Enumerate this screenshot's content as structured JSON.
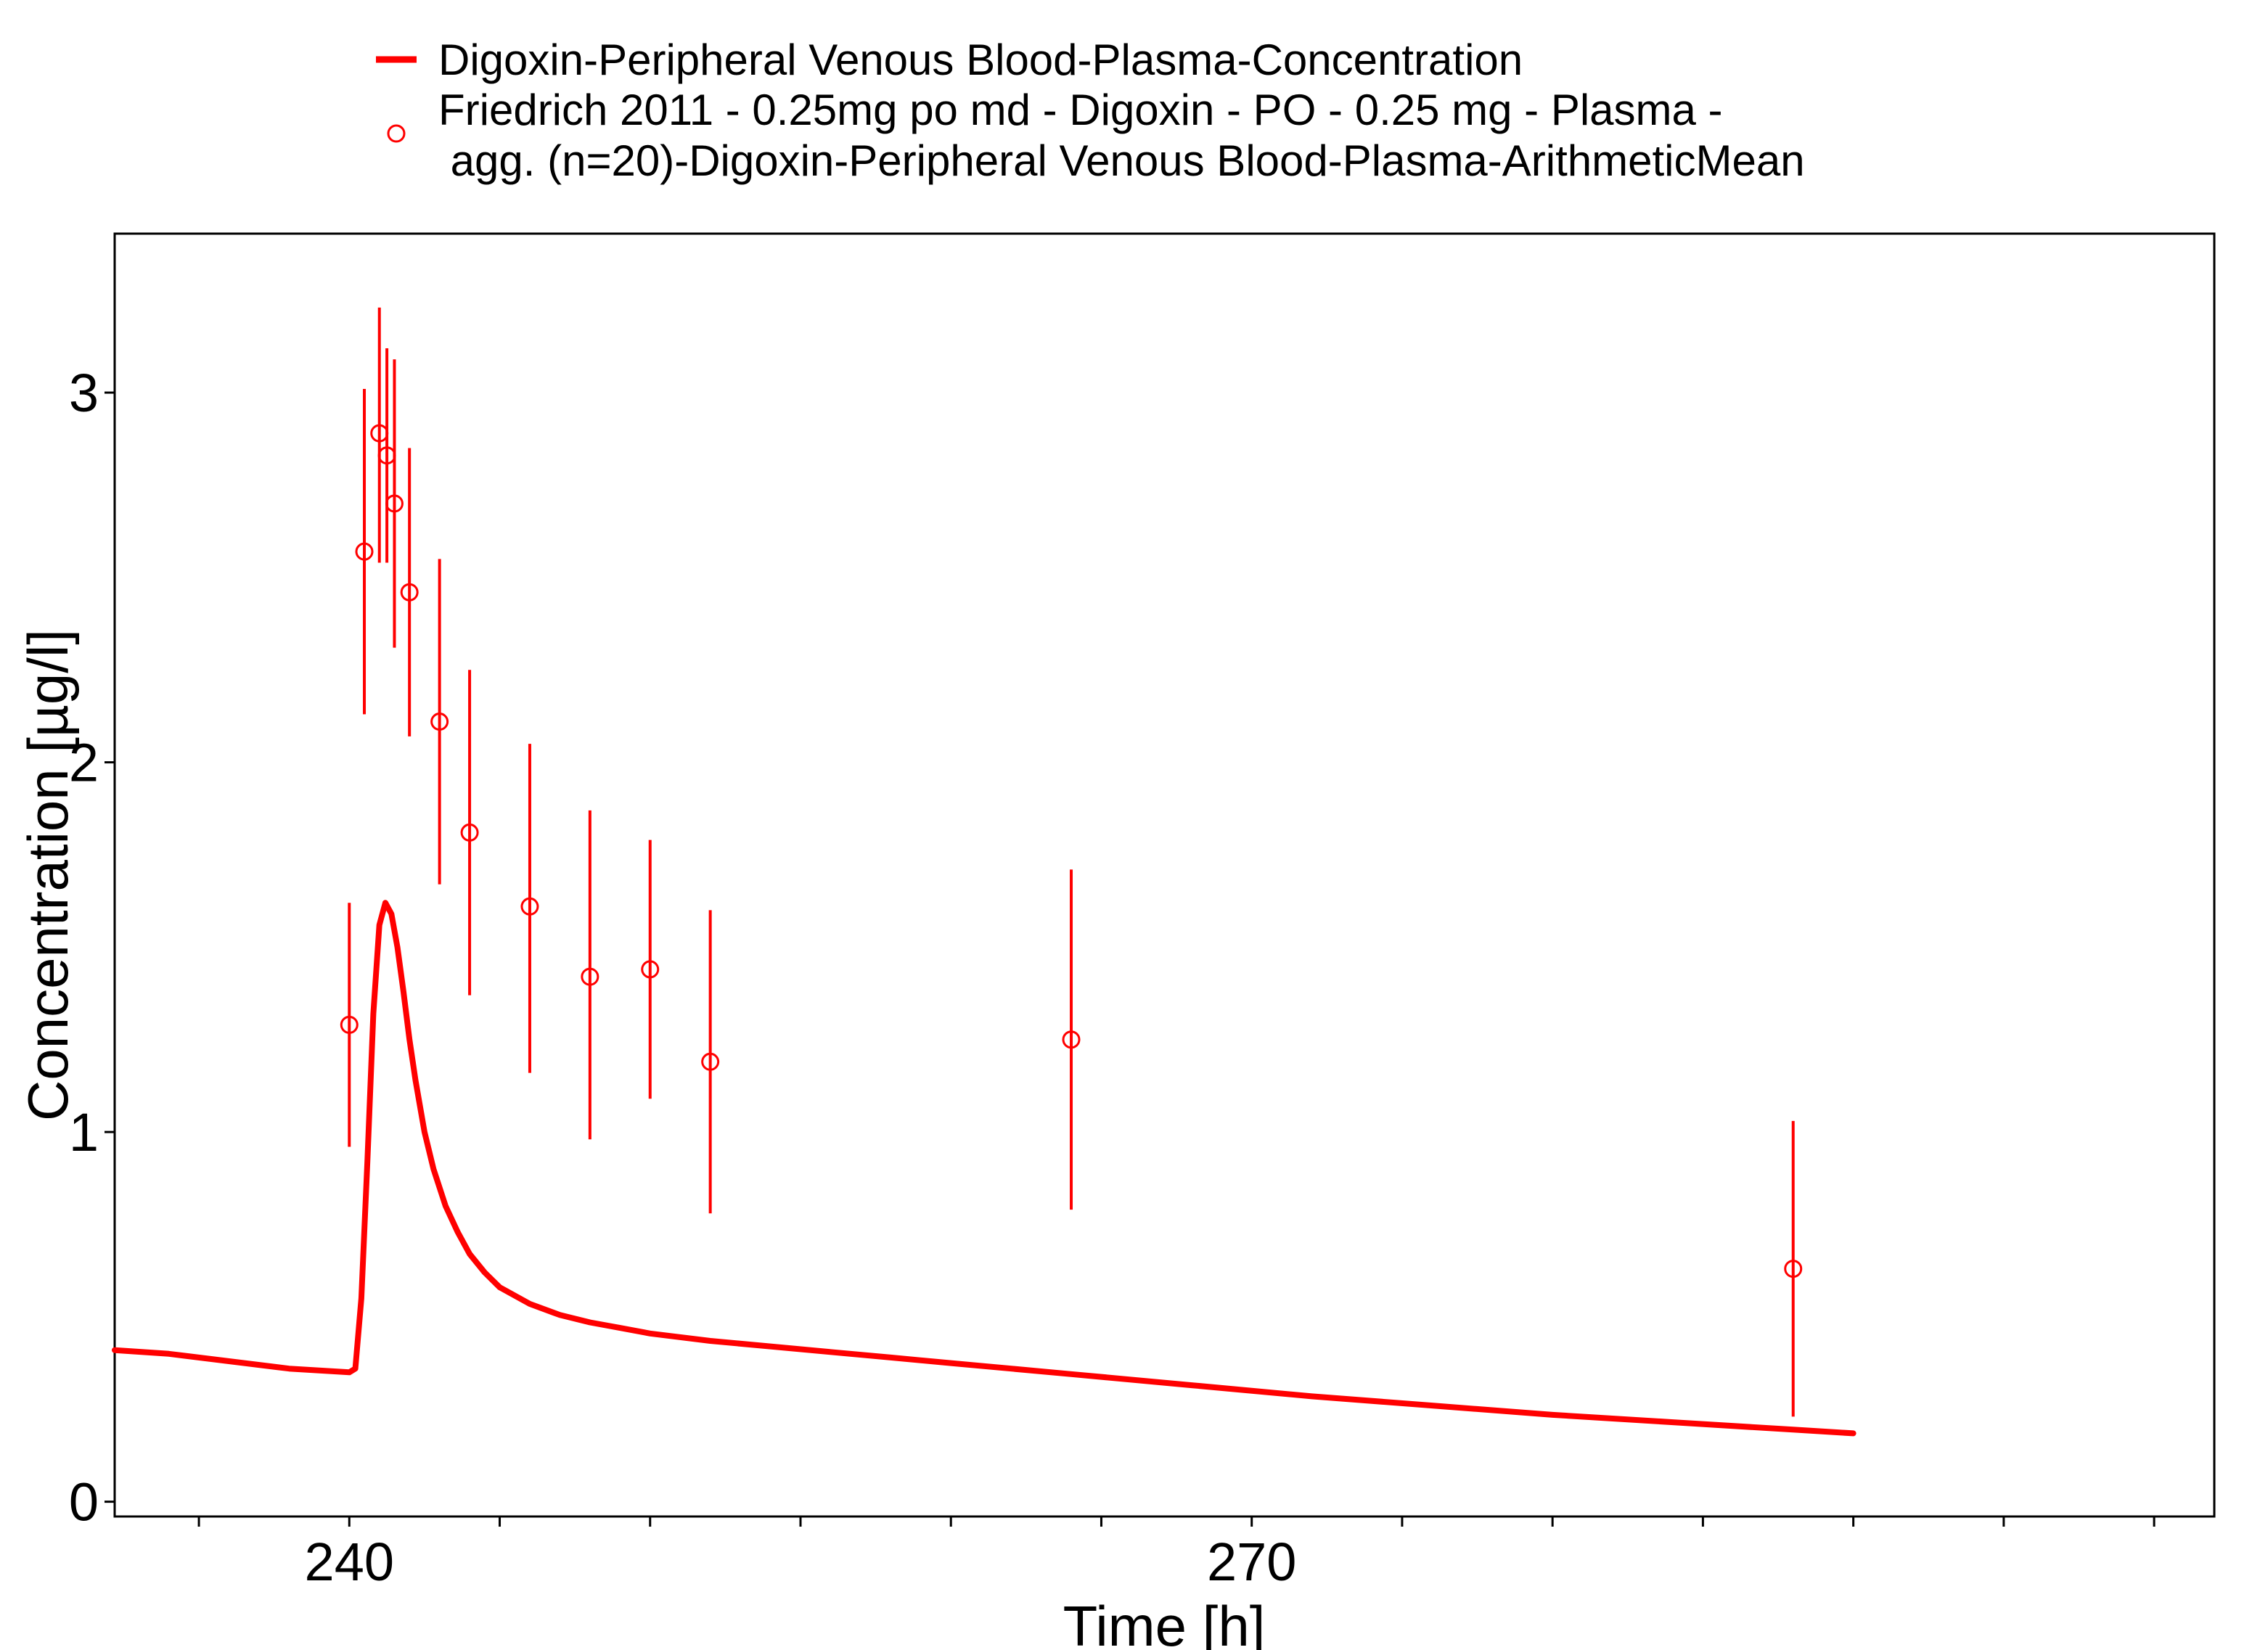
{
  "colors": {
    "series": "#ff0000",
    "axis": "#000000",
    "background": "#ffffff"
  },
  "legend": {
    "position": "top",
    "entries": [
      {
        "marker": "line",
        "lines": [
          "Digoxin-Peripheral Venous Blood-Plasma-Concentration"
        ]
      },
      {
        "marker": "open-circle",
        "lines": [
          "Friedrich 2011 - 0.25mg po md - Digoxin - PO - 0.25 mg - Plasma -",
          " agg. (n=20)-Digoxin-Peripheral Venous Blood-Plasma-ArithmeticMean"
        ]
      }
    ]
  },
  "chart_data": {
    "type": "scatter",
    "xlabel": "Time [h]",
    "ylabel": "Concentration [µg/l]",
    "xlim": [
      232.2,
      302.0
    ],
    "ylim": [
      -0.04,
      3.43
    ],
    "xticks": [
      240,
      270
    ],
    "xminor_step": 5,
    "yticks": [
      0,
      1,
      2,
      3
    ],
    "grid": false,
    "series": [
      {
        "name": "Digoxin-Peripheral Venous Blood-Plasma-Concentration",
        "kind": "line",
        "x": [
          232.2,
          234,
          236,
          238,
          240,
          240.2,
          240.4,
          240.6,
          240.8,
          241.0,
          241.2,
          241.4,
          241.6,
          241.8,
          242.0,
          242.2,
          242.5,
          242.8,
          243.2,
          243.6,
          244.0,
          244.5,
          245,
          246,
          247,
          248,
          249,
          250,
          252,
          254,
          256,
          258,
          260,
          264,
          268,
          272,
          276,
          280,
          284,
          288,
          290
        ],
        "y": [
          0.41,
          0.4,
          0.38,
          0.36,
          0.35,
          0.36,
          0.55,
          0.92,
          1.32,
          1.56,
          1.62,
          1.59,
          1.5,
          1.38,
          1.25,
          1.14,
          1.0,
          0.9,
          0.8,
          0.73,
          0.67,
          0.62,
          0.58,
          0.535,
          0.505,
          0.485,
          0.47,
          0.455,
          0.435,
          0.42,
          0.405,
          0.39,
          0.375,
          0.345,
          0.315,
          0.285,
          0.26,
          0.235,
          0.215,
          0.195,
          0.185
        ]
      },
      {
        "name": "Friedrich 2011 - 0.25mg po md - Digoxin - PO - 0.25 mg - Plasma - agg. (n=20)-Digoxin-Peripheral Venous Blood-Plasma-ArithmeticMean",
        "kind": "points-errorbars",
        "points": [
          {
            "x": 240.0,
            "y": 1.29,
            "ymin": 0.96,
            "ymax": 1.62
          },
          {
            "x": 240.5,
            "y": 2.57,
            "ymin": 2.13,
            "ymax": 3.01
          },
          {
            "x": 241.0,
            "y": 2.89,
            "ymin": 2.54,
            "ymax": 3.23
          },
          {
            "x": 241.25,
            "y": 2.83,
            "ymin": 2.54,
            "ymax": 3.12
          },
          {
            "x": 241.5,
            "y": 2.7,
            "ymin": 2.31,
            "ymax": 3.09
          },
          {
            "x": 242.0,
            "y": 2.46,
            "ymin": 2.07,
            "ymax": 2.85
          },
          {
            "x": 243.0,
            "y": 2.11,
            "ymin": 1.67,
            "ymax": 2.55
          },
          {
            "x": 244.0,
            "y": 1.81,
            "ymin": 1.37,
            "ymax": 2.25
          },
          {
            "x": 246.0,
            "y": 1.61,
            "ymin": 1.16,
            "ymax": 2.05
          },
          {
            "x": 248.0,
            "y": 1.42,
            "ymin": 0.98,
            "ymax": 1.87
          },
          {
            "x": 250.0,
            "y": 1.44,
            "ymin": 1.09,
            "ymax": 1.79
          },
          {
            "x": 252.0,
            "y": 1.19,
            "ymin": 0.78,
            "ymax": 1.6
          },
          {
            "x": 264.0,
            "y": 1.25,
            "ymin": 0.79,
            "ymax": 1.71
          },
          {
            "x": 288.0,
            "y": 0.63,
            "ymin": 0.23,
            "ymax": 1.03
          }
        ]
      }
    ]
  }
}
